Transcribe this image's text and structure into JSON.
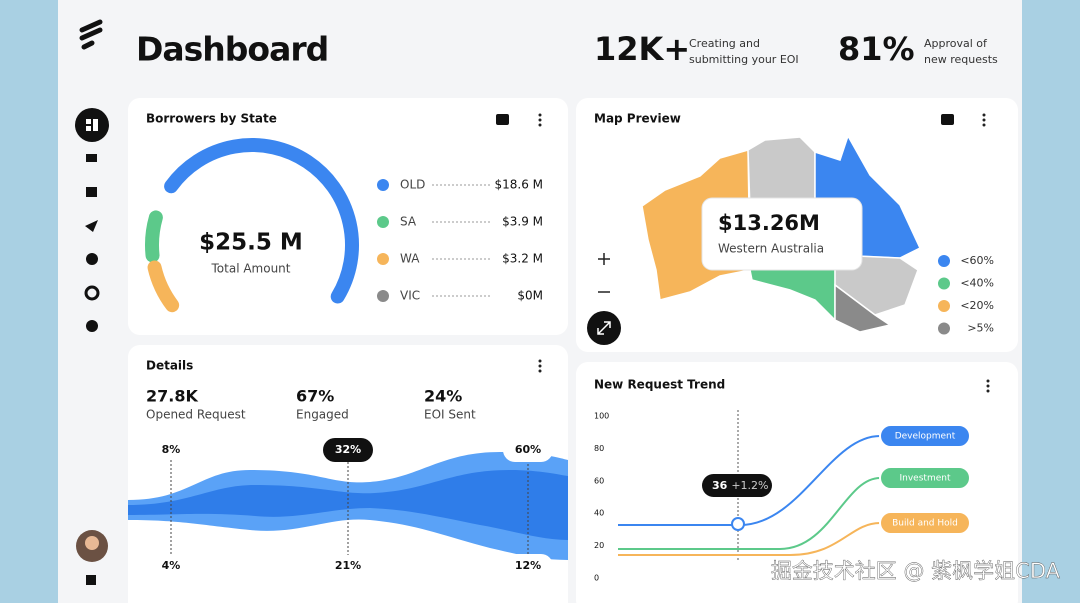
{
  "header": {
    "title": "Dashboard",
    "stats": [
      {
        "value": "12K+",
        "label": [
          "Creating and",
          "submitting your EOI"
        ]
      },
      {
        "value": "81%",
        "label": [
          "Approval of",
          "new requests"
        ]
      }
    ]
  },
  "borrowers": {
    "title": "Borrowers by State",
    "total": "$25.5 M",
    "total_label": "Total Amount",
    "legend": [
      {
        "name": "OLD",
        "value": "$18.6 M",
        "color": "#3b86f0"
      },
      {
        "name": "SA",
        "value": "$3.9 M",
        "color": "#5cc98a"
      },
      {
        "name": "WA",
        "value": "$3.2 M",
        "color": "#f6b55a"
      },
      {
        "name": "VIC",
        "value": "$0M",
        "color": "#8a8a8a"
      }
    ]
  },
  "map": {
    "title": "Map Preview",
    "value": "$13.26M",
    "region": "Western Australia",
    "legend": [
      {
        "label": "<60%",
        "color": "#3b86f0"
      },
      {
        "label": "<40%",
        "color": "#5cc98a"
      },
      {
        "label": "<20%",
        "color": "#f6b55a"
      },
      {
        "label": ">5%",
        "color": "#8a8a8a"
      }
    ]
  },
  "details": {
    "title": "Details",
    "stats": [
      {
        "value": "27.8K",
        "label": "Opened Request"
      },
      {
        "value": "67%",
        "label": "Engaged"
      },
      {
        "value": "24%",
        "label": "EOI Sent"
      }
    ],
    "top_labels": [
      "8%",
      "32%",
      "60%"
    ],
    "bottom_labels": [
      "4%",
      "21%",
      "12%"
    ]
  },
  "trend": {
    "title": "New Request Trend",
    "yticks": [
      0,
      20,
      40,
      60,
      80,
      100
    ],
    "series": [
      {
        "name": "Development",
        "color": "#3b86f0"
      },
      {
        "name": "Investment",
        "color": "#5cc98a"
      },
      {
        "name": "Build and Hold",
        "color": "#f6b55a"
      }
    ],
    "tooltip": {
      "value": "36",
      "change": "+1.2%"
    }
  },
  "watermark": "掘金技术社区 @ 紫枫学姐CDA"
}
